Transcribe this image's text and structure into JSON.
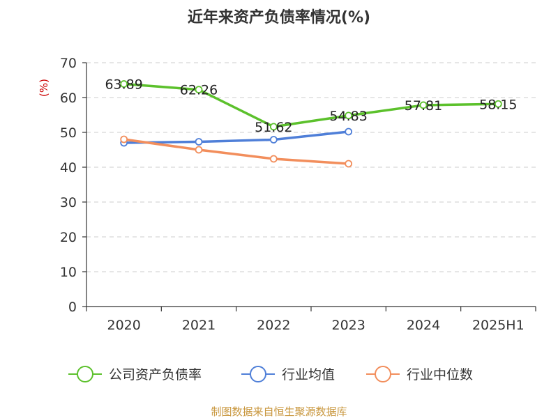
{
  "chart_data": {
    "type": "line",
    "title": "近年来资产负债率情况(%)",
    "ylabel": "(%)",
    "ylabel_color": "#cc0000",
    "categories": [
      "2020",
      "2021",
      "2022",
      "2023",
      "2024",
      "2025H1"
    ],
    "ylim": [
      0,
      70
    ],
    "yticks": [
      0,
      10,
      20,
      30,
      40,
      50,
      60,
      70
    ],
    "grid": true,
    "legend_position": "bottom",
    "series": [
      {
        "name": "公司资产负债率",
        "color": "#5cc12c",
        "values": [
          63.89,
          62.26,
          51.62,
          54.83,
          57.81,
          58.15
        ],
        "labels": [
          "63.89",
          "62.26",
          "51.62",
          "54.83",
          "57.81",
          "58.15"
        ]
      },
      {
        "name": "行业均值",
        "color": "#4f7fd8",
        "values": [
          47.0,
          47.3,
          47.9,
          50.2,
          null,
          null
        ]
      },
      {
        "name": "行业中位数",
        "color": "#f28e5c",
        "values": [
          48.0,
          45.0,
          42.4,
          41.0,
          null,
          null
        ]
      }
    ]
  },
  "source": {
    "text": "制图数据来自恒生聚源数据库",
    "color": "#c8963c"
  }
}
